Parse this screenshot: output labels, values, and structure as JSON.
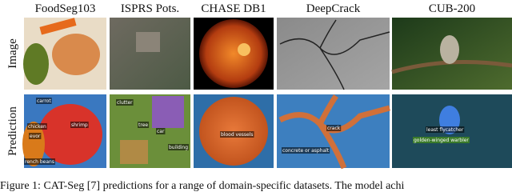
{
  "rows": [
    "Image",
    "Prediction"
  ],
  "columns": [
    {
      "title": "FoodSeg103",
      "labels": [
        "carrot",
        "chicken",
        "shrimp",
        "evor",
        "rench beans"
      ]
    },
    {
      "title": "ISPRS Pots.",
      "labels": [
        "tree",
        "car",
        "clutter",
        "building"
      ]
    },
    {
      "title": "CHASE DB1",
      "labels": [
        "blood vessels"
      ]
    },
    {
      "title": "DeepCrack",
      "labels": [
        "crack",
        "concrete or asphalt"
      ]
    },
    {
      "title": "CUB-200",
      "labels": [
        "least flycatcher",
        "golden-winged warbler"
      ]
    }
  ],
  "caption": "Figure 1: CAT-Seg [7] predictions for a range of domain-specific datasets. The model achi"
}
